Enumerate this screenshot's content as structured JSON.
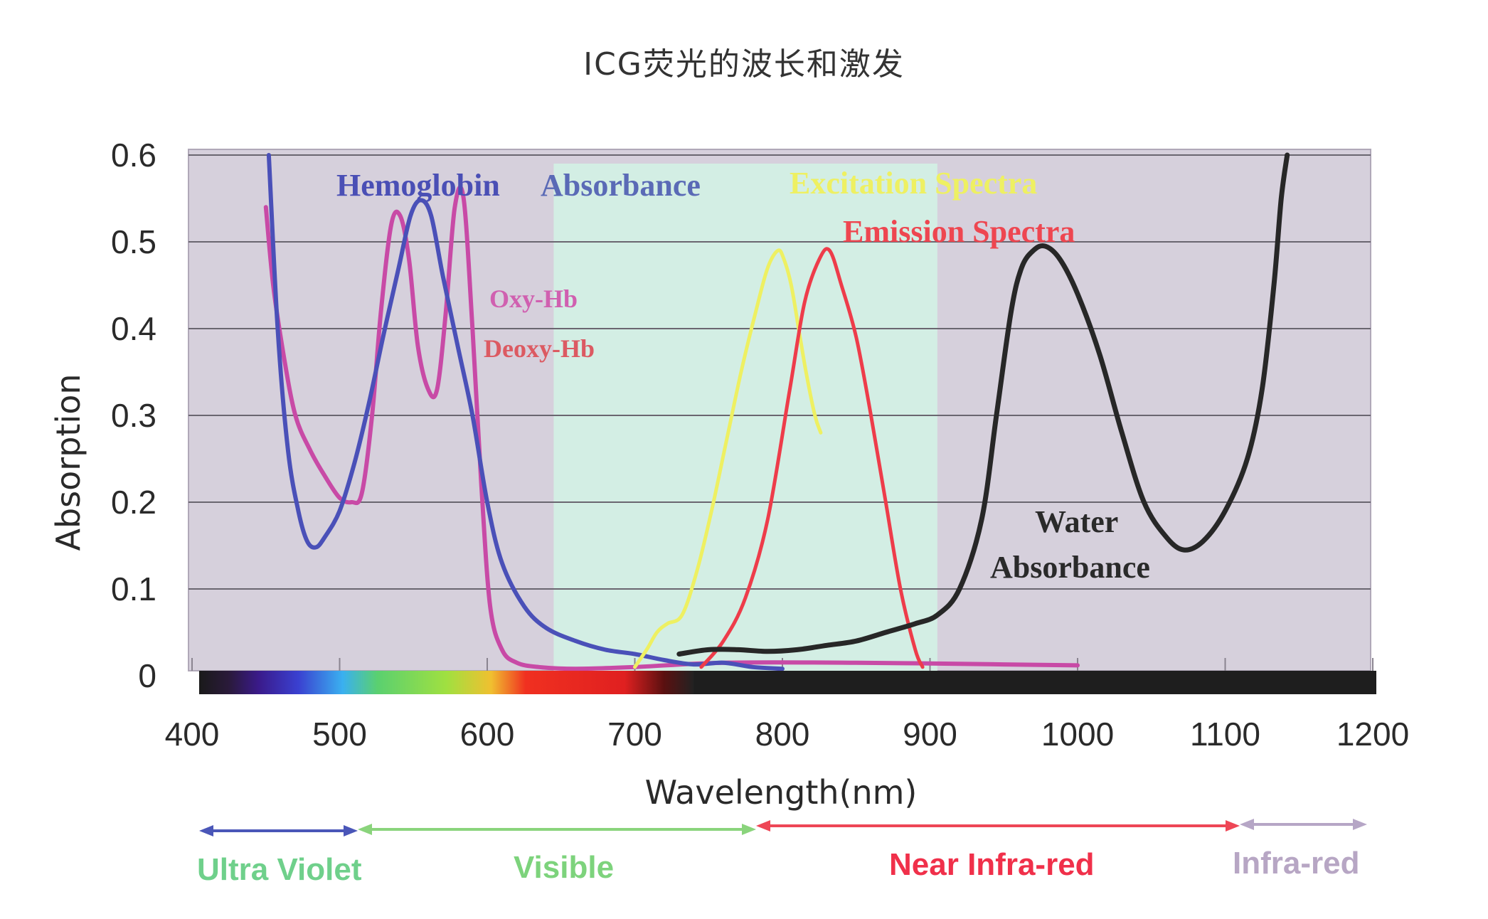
{
  "chart_data": {
    "type": "line",
    "title": "ICG荧光的波长和激发",
    "xlabel": "Wavelength(nm)",
    "ylabel": "Absorption",
    "xlim": [
      400,
      1200
    ],
    "ylim": [
      0,
      0.6
    ],
    "x_ticks": [
      "400",
      "500",
      "600",
      "700",
      "800",
      "900",
      "1000",
      "1100",
      "1200"
    ],
    "y_ticks": [
      "0",
      "0.1",
      "0.2",
      "0.3",
      "0.4",
      "0.5",
      "0.6"
    ],
    "grid": true,
    "shaded_band": {
      "x_start": 645,
      "x_end": 905,
      "color": "#d3efe4"
    },
    "plot_background": "#d6d0dc",
    "series": [
      {
        "name": "Oxy-Hb",
        "color": "#c84aa6",
        "width": 6,
        "x": [
          450,
          455,
          462,
          470,
          480,
          490,
          500,
          508,
          515,
          522,
          528,
          535,
          541,
          547,
          553,
          560,
          566,
          572,
          578,
          584,
          590,
          596,
          602,
          610,
          620,
          635,
          660,
          700,
          760,
          850,
          950,
          1000
        ],
        "y": [
          0.54,
          0.45,
          0.37,
          0.3,
          0.26,
          0.23,
          0.205,
          0.2,
          0.21,
          0.3,
          0.42,
          0.52,
          0.53,
          0.48,
          0.38,
          0.33,
          0.33,
          0.42,
          0.54,
          0.55,
          0.4,
          0.22,
          0.08,
          0.03,
          0.015,
          0.01,
          0.008,
          0.01,
          0.015,
          0.015,
          0.013,
          0.012
        ]
      },
      {
        "name": "Deoxy-Hb",
        "color": "#4a50b8",
        "width": 6,
        "x": [
          452,
          458,
          465,
          472,
          478,
          484,
          490,
          500,
          510,
          520,
          530,
          540,
          548,
          555,
          562,
          570,
          580,
          590,
          600,
          610,
          625,
          640,
          660,
          680,
          700,
          720,
          740,
          760,
          780,
          800
        ],
        "y": [
          0.6,
          0.4,
          0.26,
          0.19,
          0.155,
          0.148,
          0.16,
          0.19,
          0.245,
          0.315,
          0.395,
          0.47,
          0.53,
          0.548,
          0.53,
          0.46,
          0.38,
          0.3,
          0.2,
          0.13,
          0.08,
          0.055,
          0.04,
          0.03,
          0.025,
          0.018,
          0.013,
          0.015,
          0.01,
          0.008
        ]
      },
      {
        "name": "Excitation Spectra",
        "color": "#eef062",
        "width": 5,
        "x": [
          700,
          708,
          715,
          722,
          732,
          742,
          752,
          762,
          772,
          782,
          790,
          797,
          801,
          806,
          811,
          816,
          822,
          826
        ],
        "y": [
          0.01,
          0.03,
          0.05,
          0.06,
          0.07,
          0.12,
          0.19,
          0.27,
          0.35,
          0.42,
          0.47,
          0.49,
          0.48,
          0.45,
          0.4,
          0.35,
          0.3,
          0.28
        ]
      },
      {
        "name": "Emission Spectra",
        "color": "#ee3c4a",
        "width": 5,
        "x": [
          745,
          760,
          775,
          790,
          805,
          815,
          825,
          832,
          840,
          850,
          860,
          870,
          880,
          890,
          895
        ],
        "y": [
          0.01,
          0.04,
          0.09,
          0.18,
          0.33,
          0.43,
          0.48,
          0.49,
          0.45,
          0.39,
          0.3,
          0.2,
          0.1,
          0.03,
          0.01
        ]
      },
      {
        "name": "Water Absorbance",
        "color": "#272727",
        "width": 7,
        "x": [
          730,
          750,
          770,
          790,
          810,
          830,
          850,
          870,
          890,
          905,
          920,
          935,
          945,
          955,
          962,
          970,
          978,
          988,
          1000,
          1015,
          1030,
          1045,
          1060,
          1072,
          1085,
          1100,
          1115,
          1125,
          1133,
          1138,
          1142
        ],
        "y": [
          0.025,
          0.03,
          0.03,
          0.028,
          0.03,
          0.035,
          0.04,
          0.05,
          0.06,
          0.07,
          0.1,
          0.18,
          0.3,
          0.42,
          0.47,
          0.49,
          0.495,
          0.48,
          0.44,
          0.37,
          0.28,
          0.2,
          0.16,
          0.145,
          0.155,
          0.19,
          0.25,
          0.33,
          0.45,
          0.55,
          0.6
        ]
      }
    ],
    "annotations": [
      {
        "text": "Hemoglobin",
        "color": "#4a4fb5"
      },
      {
        "text": "Absorbance",
        "color": "#5a6ab6"
      },
      {
        "text": "Excitation Spectra",
        "color": "#eef062"
      },
      {
        "text": "Emission Spectra",
        "color": "#ee4650"
      },
      {
        "text": "Oxy-Hb",
        "color": "#d060b0"
      },
      {
        "text": "Deoxy-Hb",
        "color": "#dc5a62"
      },
      {
        "text": "Water",
        "color": "#2a2a2a"
      },
      {
        "text": "Absorbance",
        "color": "#2a2a2a"
      }
    ],
    "spectrum_bar": {
      "visible_from": 400,
      "visible_to": 740
    }
  },
  "regions": [
    {
      "label": "Ultra Violet",
      "color": "#6fd08b",
      "arrow_color": "#4a56b8"
    },
    {
      "label": "Visible",
      "color": "#7dd37c",
      "arrow_color": "#8ad47c"
    },
    {
      "label": "Near Infra-red",
      "color": "#f0304a",
      "arrow_color": "#ee4656"
    },
    {
      "label": "Infra-red",
      "color": "#b7a6c4",
      "arrow_color": "#b6a6c6"
    }
  ]
}
